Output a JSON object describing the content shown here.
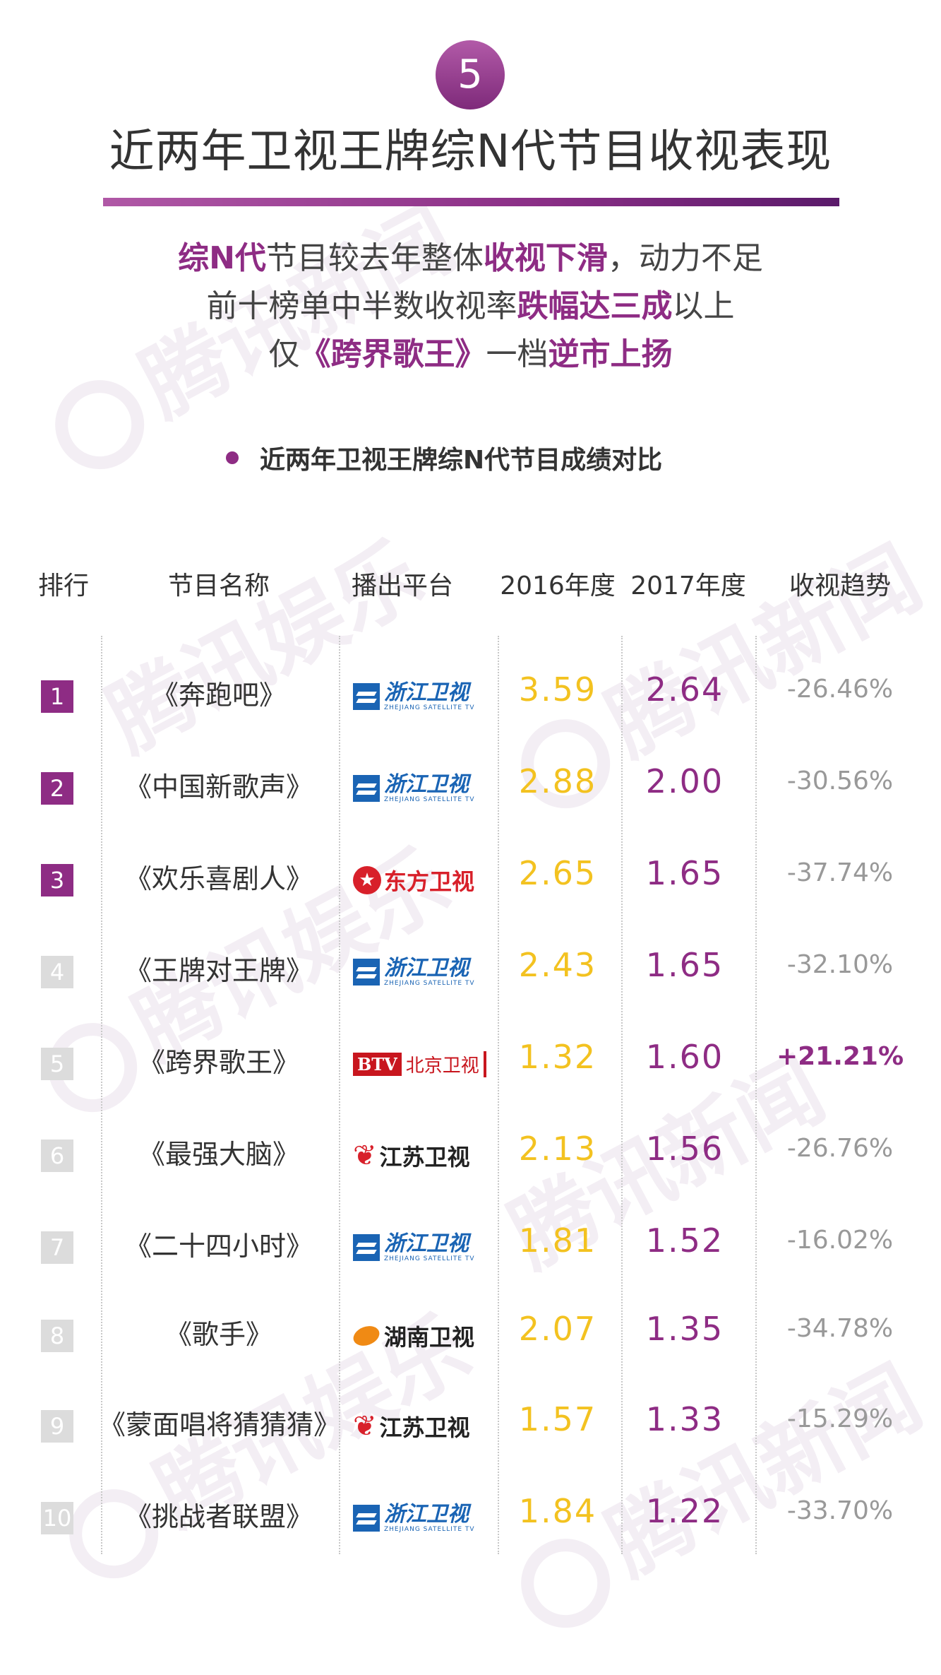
{
  "badge_number": "5",
  "title": "近两年卫视王牌综N代节目收视表现",
  "summary": [
    [
      {
        "t": "综N代",
        "h": true
      },
      {
        "t": "节目较去年整体",
        "h": false
      },
      {
        "t": "收视下滑",
        "h": true
      },
      {
        "t": "，动力不足",
        "h": false
      }
    ],
    [
      {
        "t": "前十榜单中半数收视率",
        "h": false
      },
      {
        "t": "跌幅达三成",
        "h": true
      },
      {
        "t": "以上",
        "h": false
      }
    ],
    [
      {
        "t": "仅",
        "h": false
      },
      {
        "t": "《跨界歌王》",
        "h": true
      },
      {
        "t": "一档",
        "h": false
      },
      {
        "t": "逆市上扬",
        "h": true
      }
    ]
  ],
  "section_title": "近两年卫视王牌综N代节目成绩对比",
  "watermark_text": "腾讯新闻",
  "watermark_text_2": "腾讯娱乐",
  "chart_data": {
    "type": "table",
    "title": "近两年卫视王牌综N代节目成绩对比",
    "columns": [
      "排行",
      "节目名称",
      "播出平台",
      "2016年度",
      "2017年度",
      "收视趋势"
    ],
    "rows": [
      {
        "rank": "1",
        "name": "《奔跑吧》",
        "platform": {
          "cn": "浙江卫视",
          "en": "ZHEJIANG SATELLITE TV",
          "mark": "",
          "style": "zj"
        },
        "v2016": "3.59",
        "v2017": "2.64",
        "trend": "-26.46%",
        "up": false,
        "top": true
      },
      {
        "rank": "2",
        "name": "《中国新歌声》",
        "platform": {
          "cn": "浙江卫视",
          "en": "ZHEJIANG SATELLITE TV",
          "mark": "",
          "style": "zj"
        },
        "v2016": "2.88",
        "v2017": "2.00",
        "trend": "-30.56%",
        "up": false,
        "top": true
      },
      {
        "rank": "3",
        "name": "《欢乐喜剧人》",
        "platform": {
          "cn": "东方卫视",
          "en": "",
          "mark": "★",
          "style": "df"
        },
        "v2016": "2.65",
        "v2017": "1.65",
        "trend": "-37.74%",
        "up": false,
        "top": true
      },
      {
        "rank": "4",
        "name": "《王牌对王牌》",
        "platform": {
          "cn": "浙江卫视",
          "en": "ZHEJIANG SATELLITE TV",
          "mark": "",
          "style": "zj"
        },
        "v2016": "2.43",
        "v2017": "1.65",
        "trend": "-32.10%",
        "up": false,
        "top": false
      },
      {
        "rank": "5",
        "name": "《跨界歌王》",
        "platform": {
          "cn": "北京卫视",
          "en": "",
          "mark": "BTV",
          "style": "bj"
        },
        "v2016": "1.32",
        "v2017": "1.60",
        "trend": "+21.21%",
        "up": true,
        "top": false
      },
      {
        "rank": "6",
        "name": "《最强大脑》",
        "platform": {
          "cn": "江苏卫视",
          "en": "",
          "mark": "❦",
          "style": "js"
        },
        "v2016": "2.13",
        "v2017": "1.56",
        "trend": "-26.76%",
        "up": false,
        "top": false
      },
      {
        "rank": "7",
        "name": "《二十四小时》",
        "platform": {
          "cn": "浙江卫视",
          "en": "ZHEJIANG SATELLITE TV",
          "mark": "",
          "style": "zj"
        },
        "v2016": "1.81",
        "v2017": "1.52",
        "trend": "-16.02%",
        "up": false,
        "top": false
      },
      {
        "rank": "8",
        "name": "《歌手》",
        "platform": {
          "cn": "湖南卫视",
          "en": "",
          "mark": "",
          "style": "hn"
        },
        "v2016": "2.07",
        "v2017": "1.35",
        "trend": "-34.78%",
        "up": false,
        "top": false
      },
      {
        "rank": "9",
        "name": "《蒙面唱将猜猜猜》",
        "platform": {
          "cn": "江苏卫视",
          "en": "",
          "mark": "❦",
          "style": "js"
        },
        "v2016": "1.57",
        "v2017": "1.33",
        "trend": "-15.29%",
        "up": false,
        "top": false
      },
      {
        "rank": "10",
        "name": "《挑战者联盟》",
        "platform": {
          "cn": "浙江卫视",
          "en": "ZHEJIANG SATELLITE TV",
          "mark": "",
          "style": "zj"
        },
        "v2016": "1.84",
        "v2017": "1.22",
        "trend": "-33.70%",
        "up": false,
        "top": false
      }
    ]
  },
  "colors": {
    "accent": "#8e2c84",
    "value2016": "#f3c220",
    "trend_down": "#999999"
  }
}
